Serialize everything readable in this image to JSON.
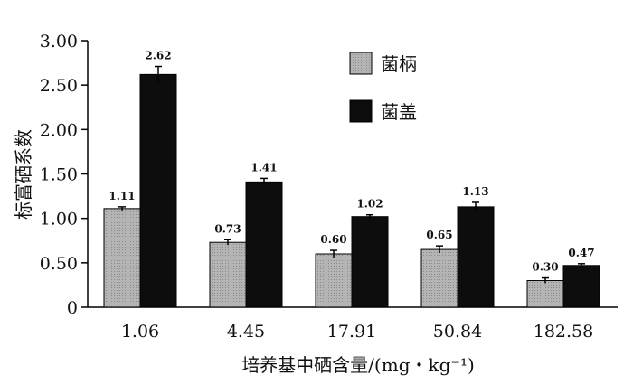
{
  "chart_data": {
    "type": "bar",
    "categories": [
      "1.06",
      "4.45",
      "17.91",
      "50.84",
      "182.58"
    ],
    "series": [
      {
        "name": "菌柄",
        "color": "#a9a9a9",
        "values": [
          1.11,
          0.73,
          0.6,
          0.65,
          0.3
        ],
        "errors": [
          0.02,
          0.03,
          0.04,
          0.04,
          0.03
        ],
        "labels": [
          "1.11",
          "0.73",
          "0.60",
          "0.65",
          "0.30"
        ]
      },
      {
        "name": "菌盖",
        "color": "#0d0d0d",
        "values": [
          2.62,
          1.41,
          1.02,
          1.13,
          0.47
        ],
        "errors": [
          0.09,
          0.04,
          0.02,
          0.05,
          0.02
        ],
        "labels": [
          "2.62",
          "1.41",
          "1.02",
          "1.13",
          "0.47"
        ]
      }
    ],
    "title": "",
    "xlabel": "培养基中硒含量/(mg・kg⁻¹)",
    "ylabel": "标富硒系数",
    "ylim": [
      0,
      3.0
    ],
    "yticks": [
      "0",
      "0.50",
      "1.00",
      "1.50",
      "2.00",
      "2.50",
      "3.00"
    ],
    "ytick_values": [
      0,
      0.5,
      1.0,
      1.5,
      2.0,
      2.5,
      3.0
    ],
    "legend_position": "top-right",
    "grid": false
  }
}
